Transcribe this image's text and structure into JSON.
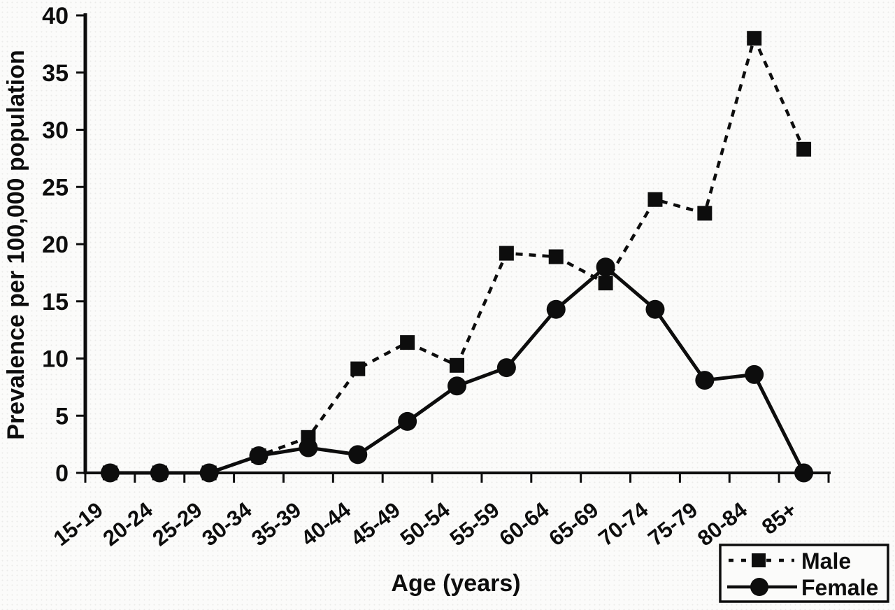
{
  "chart_data": {
    "type": "line",
    "title": "",
    "xlabel": "Age (years)",
    "ylabel": "Prevalence per 100,000 population",
    "categories": [
      "15-19",
      "20-24",
      "25-29",
      "30-34",
      "35-39",
      "40-44",
      "45-49",
      "50-54",
      "55-59",
      "60-64",
      "65-69",
      "70-74",
      "75-79",
      "80-84",
      "85+"
    ],
    "series": [
      {
        "name": "Male",
        "marker": "square",
        "line_style": "dashed",
        "values": [
          0,
          0,
          0,
          1.5,
          3.1,
          9.1,
          11.4,
          9.4,
          19.2,
          18.9,
          16.6,
          23.9,
          22.7,
          38.0,
          28.3
        ]
      },
      {
        "name": "Female",
        "marker": "circle",
        "line_style": "solid",
        "values": [
          0,
          0,
          0,
          1.5,
          2.2,
          1.6,
          4.5,
          7.6,
          9.2,
          14.3,
          18.0,
          14.3,
          8.1,
          8.6,
          0
        ]
      }
    ],
    "ylim": [
      0,
      40
    ],
    "ytick_step": 5,
    "grid": false,
    "legend_position": "bottom-right",
    "ink_color": "#0d0d0d"
  }
}
